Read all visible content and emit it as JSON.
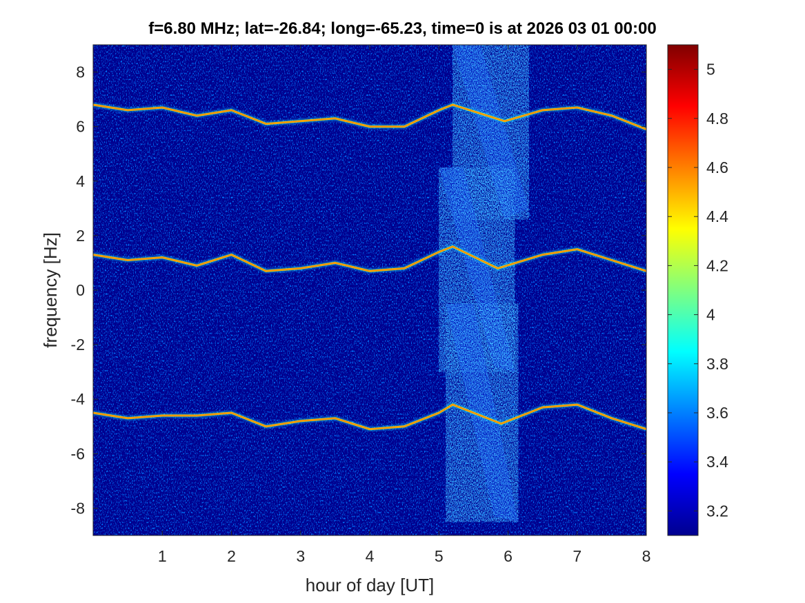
{
  "chart_data": {
    "type": "heatmap",
    "title": "f=6.80 MHz;  lat=-26.84; long=-65.23, time=0 is at 2026 03 01 00:00",
    "xlabel": "hour of day [UT]",
    "ylabel": "frequency [Hz]",
    "xlim": [
      0,
      8
    ],
    "ylim": [
      -9,
      9
    ],
    "x_ticks": [
      1,
      2,
      3,
      4,
      5,
      6,
      7,
      8
    ],
    "y_ticks": [
      -8,
      -6,
      -4,
      -2,
      0,
      2,
      4,
      6,
      8
    ],
    "colorbar": {
      "range": [
        3.1,
        5.1
      ],
      "ticks": [
        3.2,
        3.4,
        3.6,
        3.8,
        4,
        4.2,
        4.4,
        4.6,
        4.8,
        5
      ],
      "colormap": "jet"
    },
    "background_level": 3.1,
    "series": [
      {
        "x": [
          0,
          0.5,
          1,
          1.5,
          2,
          2.5,
          3,
          3.5,
          4,
          4.5,
          5,
          5.2,
          5.95,
          6.5,
          7,
          7.5,
          8
        ],
        "values": [
          6.8,
          6.6,
          6.7,
          6.4,
          6.6,
          6.1,
          6.2,
          6.3,
          6.0,
          6.0,
          6.6,
          6.8,
          6.2,
          6.6,
          6.7,
          6.4,
          5.9
        ]
      },
      {
        "x": [
          0,
          0.5,
          1,
          1.5,
          2,
          2.5,
          3,
          3.5,
          4,
          4.5,
          5,
          5.2,
          5.85,
          6.5,
          7,
          7.5,
          8
        ],
        "values": [
          1.3,
          1.1,
          1.2,
          0.9,
          1.3,
          0.7,
          0.8,
          1.0,
          0.7,
          0.8,
          1.4,
          1.6,
          0.8,
          1.3,
          1.5,
          1.1,
          0.7
        ]
      },
      {
        "x": [
          0,
          0.5,
          1,
          1.5,
          2,
          2.5,
          3,
          3.5,
          4,
          4.5,
          5,
          5.2,
          5.9,
          6.5,
          7,
          7.5,
          8
        ],
        "values": [
          -4.5,
          -4.7,
          -4.6,
          -4.6,
          -4.5,
          -5.0,
          -4.8,
          -4.7,
          -5.1,
          -5.0,
          -4.5,
          -4.2,
          -4.9,
          -4.3,
          -4.2,
          -4.7,
          -5.1
        ]
      }
    ],
    "colors": {
      "background": "#00008f",
      "line_peak": "#ff6a00",
      "line_core": "#ffe000",
      "line_halo": "#00d0ff"
    }
  }
}
